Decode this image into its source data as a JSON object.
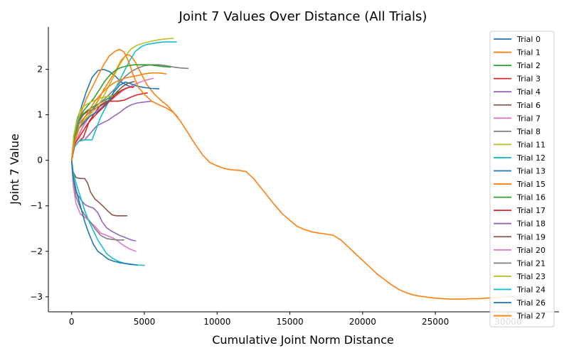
{
  "chart_data": {
    "type": "line",
    "title": "Joint 7 Values Over Distance (All Trials)",
    "xlabel": "Cumulative Joint Norm Distance",
    "ylabel": "Joint 7 Value",
    "xlim": [
      -1600,
      33500
    ],
    "ylim": [
      -3.33,
      2.93
    ],
    "xticks": [
      0,
      5000,
      10000,
      15000,
      20000,
      25000,
      30000
    ],
    "xtick_labels": [
      "0",
      "5000",
      "10000",
      "15000",
      "20000",
      "25000",
      "30000"
    ],
    "yticks": [
      -3,
      -2,
      -1,
      0,
      1,
      2
    ],
    "ytick_labels": [
      "−3",
      "−2",
      "−1",
      "0",
      "1",
      "2"
    ],
    "grid": false,
    "legend_position": "top-right",
    "series": [
      {
        "name": "Trial 0",
        "color": "#1f77b4",
        "x": [
          0,
          150,
          400,
          700,
          1000,
          1400,
          1800,
          2200,
          2600,
          3000,
          3400,
          3800,
          4200
        ],
        "y": [
          0,
          0.55,
          0.9,
          1.2,
          1.5,
          1.82,
          1.97,
          2.0,
          1.95,
          1.85,
          1.72,
          1.65,
          1.6
        ]
      },
      {
        "name": "Trial 1",
        "color": "#ff7f0e",
        "x": [
          0,
          150,
          400,
          700,
          1000,
          1400,
          1800,
          2200,
          2600,
          3000,
          3400,
          3700,
          3900,
          4100,
          4400,
          4700,
          5200,
          5700,
          6200,
          6600,
          7000,
          7300
        ],
        "y": [
          0,
          0.3,
          0.5,
          0.7,
          0.9,
          1.1,
          1.3,
          1.55,
          1.75,
          1.95,
          2.2,
          2.3,
          2.32,
          2.28,
          2.15,
          1.95,
          1.65,
          1.45,
          1.3,
          1.2,
          1.05,
          0.95
        ]
      },
      {
        "name": "Trial 2",
        "color": "#2ca02c",
        "x": [
          0,
          200,
          500,
          800,
          1100,
          1500,
          1900,
          2300,
          2700,
          3100,
          3500,
          3900
        ],
        "y": [
          0,
          0.5,
          0.85,
          1.02,
          1.1,
          1.18,
          1.25,
          1.32,
          1.4,
          1.48,
          1.55,
          1.6
        ]
      },
      {
        "name": "Trial 3",
        "color": "#d62728",
        "x": [
          0,
          200,
          500,
          800,
          1200,
          1600,
          2000,
          2400,
          2800,
          3200,
          3600,
          4000,
          4400,
          4800,
          5200
        ],
        "y": [
          0,
          0.3,
          0.42,
          0.5,
          0.85,
          1.05,
          1.22,
          1.3,
          1.3,
          1.3,
          1.32,
          1.38,
          1.43,
          1.46,
          1.48
        ]
      },
      {
        "name": "Trial 4",
        "color": "#9467bd",
        "x": [
          0,
          200,
          500,
          900,
          1300,
          1700,
          2100,
          2500,
          2900,
          3300,
          3700,
          4100,
          4500,
          5000,
          5500
        ],
        "y": [
          0,
          0.3,
          0.42,
          0.45,
          0.6,
          0.75,
          0.82,
          0.88,
          0.97,
          1.05,
          1.15,
          1.22,
          1.26,
          1.28,
          1.3
        ]
      },
      {
        "name": "Trial 6",
        "color": "#8c564b",
        "x": [
          0,
          200,
          500,
          800,
          1100,
          1500,
          1900,
          2300,
          2700,
          3100,
          3500,
          3900,
          4300
        ],
        "y": [
          0,
          0.5,
          0.85,
          1.0,
          1.08,
          1.12,
          1.18,
          1.25,
          1.35,
          1.5,
          1.62,
          1.7,
          1.73
        ]
      },
      {
        "name": "Trial 7",
        "color": "#e377c2",
        "x": [
          0,
          200,
          500,
          800,
          1200,
          1600,
          2000,
          2400,
          2800,
          3200,
          3600,
          4000,
          4400,
          4800,
          5200,
          5600
        ],
        "y": [
          0,
          0.35,
          0.55,
          0.75,
          0.95,
          1.05,
          1.15,
          1.25,
          1.35,
          1.45,
          1.55,
          1.62,
          1.68,
          1.73,
          1.77,
          1.8
        ]
      },
      {
        "name": "Trial 8",
        "color": "#7f7f7f",
        "x": [
          0,
          200,
          500,
          900,
          1300,
          1700,
          2100,
          2500,
          2900,
          3300,
          3700,
          4100,
          4500,
          5000,
          5500,
          6000,
          6500,
          7000,
          7500,
          8000
        ],
        "y": [
          0,
          0.45,
          0.8,
          0.95,
          1.08,
          1.2,
          1.3,
          1.42,
          1.55,
          1.7,
          1.85,
          1.95,
          2.02,
          2.08,
          2.1,
          2.1,
          2.08,
          2.05,
          2.03,
          2.02
        ]
      },
      {
        "name": "Trial 11",
        "color": "#bcbd22",
        "x": [
          0,
          200,
          500,
          900,
          1300,
          1700,
          2100,
          2500,
          2900,
          3300,
          3700,
          4100,
          4500,
          5000,
          5500,
          6000,
          6500,
          7000
        ],
        "y": [
          0,
          0.4,
          0.7,
          0.9,
          1.02,
          1.15,
          1.35,
          1.6,
          1.85,
          2.1,
          2.3,
          2.45,
          2.53,
          2.58,
          2.62,
          2.65,
          2.67,
          2.68
        ]
      },
      {
        "name": "Trial 12",
        "color": "#17becf",
        "x": [
          0,
          200,
          500,
          800,
          1100,
          1400,
          1700,
          2000,
          2400,
          2800,
          3200,
          3600,
          4000,
          4400,
          4800,
          5200,
          5800,
          6300,
          7200
        ],
        "y": [
          0,
          0.3,
          0.42,
          0.45,
          0.45,
          0.45,
          0.7,
          0.95,
          1.2,
          1.45,
          1.7,
          1.95,
          2.2,
          2.4,
          2.5,
          2.55,
          2.58,
          2.6,
          2.6
        ]
      },
      {
        "name": "Trial 13",
        "color": "#1f77b4",
        "x": [
          0,
          200,
          500,
          900,
          1300,
          1700,
          2100,
          2500,
          2900,
          3300,
          3700,
          4100,
          4500,
          5000,
          5500,
          6000
        ],
        "y": [
          0,
          0.4,
          0.7,
          0.85,
          0.98,
          1.05,
          1.15,
          1.3,
          1.5,
          1.65,
          1.72,
          1.68,
          1.63,
          1.6,
          1.58,
          1.57
        ]
      },
      {
        "name": "Trial 15",
        "color": "#ff7f0e",
        "x": [
          0,
          300,
          600,
          1000,
          1400,
          1800,
          2200,
          2600,
          3000,
          3300,
          3600,
          3800,
          4000,
          4200,
          4600,
          5000,
          5500,
          6000,
          6500,
          7000,
          7500,
          8000,
          8500,
          9000,
          9500,
          10000,
          10500,
          11000,
          11500,
          12000,
          12500,
          13000,
          13500,
          14000,
          14500,
          15000,
          15500,
          16000,
          16500,
          17000,
          17500,
          18000,
          18500,
          19000,
          19500,
          20000,
          20500,
          21000,
          21500,
          22000,
          22500,
          23000,
          23500,
          24000,
          24500,
          25000,
          25500,
          26000,
          26500,
          27000,
          27500,
          28000,
          28500,
          29000,
          29500,
          30000,
          30500
        ],
        "y": [
          0,
          0.6,
          1.0,
          1.35,
          1.6,
          1.85,
          2.1,
          2.3,
          2.4,
          2.44,
          2.38,
          2.25,
          2.1,
          1.9,
          1.6,
          1.45,
          1.3,
          1.22,
          1.15,
          1.05,
          0.85,
          0.6,
          0.35,
          0.12,
          -0.05,
          -0.12,
          -0.18,
          -0.21,
          -0.22,
          -0.25,
          -0.4,
          -0.6,
          -0.8,
          -1.0,
          -1.18,
          -1.32,
          -1.45,
          -1.52,
          -1.57,
          -1.6,
          -1.62,
          -1.65,
          -1.75,
          -1.9,
          -2.05,
          -2.2,
          -2.35,
          -2.5,
          -2.62,
          -2.74,
          -2.84,
          -2.91,
          -2.96,
          -2.99,
          -3.01,
          -3.03,
          -3.04,
          -3.05,
          -3.05,
          -3.05,
          -3.04,
          -3.04,
          -3.03,
          -3.02,
          -3.01,
          -3.0,
          -2.99
        ]
      },
      {
        "name": "Trial 16",
        "color": "#2ca02c",
        "x": [
          0,
          200,
          500,
          800,
          1100,
          1500,
          1900,
          2300,
          2700,
          3100,
          3500,
          3900,
          4300,
          4800,
          5300,
          5800,
          6300,
          6800
        ],
        "y": [
          0,
          0.5,
          0.9,
          1.08,
          1.2,
          1.35,
          1.55,
          1.75,
          1.9,
          2.0,
          2.05,
          2.08,
          2.1,
          2.1,
          2.1,
          2.08,
          2.06,
          2.05
        ]
      },
      {
        "name": "Trial 17",
        "color": "#d62728",
        "x": [
          0,
          200,
          500,
          800,
          1100,
          1500,
          1900,
          2300,
          2700,
          3100,
          3500,
          3900,
          4300
        ],
        "y": [
          0,
          0.35,
          0.5,
          0.65,
          0.8,
          0.95,
          1.08,
          1.2,
          1.33,
          1.45,
          1.55,
          1.6,
          1.62
        ]
      },
      {
        "name": "Trial 18",
        "color": "#9467bd",
        "x": [
          0,
          100,
          300,
          600,
          900,
          1200,
          1500,
          1800,
          2100,
          2400,
          2700,
          3000,
          3300,
          3700,
          4100,
          4400
        ],
        "y": [
          0,
          -0.4,
          -0.7,
          -0.85,
          -0.97,
          -1.02,
          -1.05,
          -1.15,
          -1.35,
          -1.48,
          -1.55,
          -1.6,
          -1.65,
          -1.7,
          -1.75,
          -1.77
        ]
      },
      {
        "name": "Trial 19",
        "color": "#8c564b",
        "x": [
          0,
          100,
          300,
          600,
          900,
          1100,
          1300,
          1600,
          1900,
          2200,
          2500,
          2800,
          3100,
          3400,
          3800
        ],
        "y": [
          0,
          -0.25,
          -0.38,
          -0.4,
          -0.4,
          -0.5,
          -0.7,
          -0.85,
          -0.93,
          -1.02,
          -1.12,
          -1.2,
          -1.22,
          -1.22,
          -1.22
        ]
      },
      {
        "name": "Trial 20",
        "color": "#e377c2",
        "x": [
          0,
          100,
          300,
          600,
          900,
          1200,
          1600,
          2000,
          2400,
          2800,
          3200,
          3600,
          4000,
          4400
        ],
        "y": [
          0,
          -0.55,
          -0.95,
          -1.18,
          -1.25,
          -1.33,
          -1.45,
          -1.6,
          -1.65,
          -1.7,
          -1.78,
          -1.88,
          -1.95,
          -2.0
        ]
      },
      {
        "name": "Trial 21",
        "color": "#7f7f7f",
        "x": [
          0,
          100,
          300,
          600,
          900,
          1200,
          1600,
          2000,
          2400,
          2800,
          3200,
          3600
        ],
        "y": [
          0,
          -0.4,
          -0.8,
          -1.05,
          -1.2,
          -1.32,
          -1.5,
          -1.65,
          -1.72,
          -1.74,
          -1.75,
          -1.75
        ]
      },
      {
        "name": "Trial 23",
        "color": "#bcbd22",
        "x": [
          0,
          150,
          400,
          700,
          1000,
          1300,
          1600,
          2000,
          2400,
          2800
        ],
        "y": [
          0,
          0.55,
          0.95,
          1.15,
          1.22,
          1.28,
          1.32,
          1.37,
          1.4,
          1.42
        ]
      },
      {
        "name": "Trial 24",
        "color": "#17becf",
        "x": [
          0,
          100,
          300,
          600,
          900,
          1200,
          1500,
          1800,
          2100,
          2400,
          2800,
          3200,
          3600,
          4000,
          4500,
          5000
        ],
        "y": [
          0,
          -0.25,
          -0.5,
          -0.8,
          -1.1,
          -1.35,
          -1.55,
          -1.75,
          -1.9,
          -2.05,
          -2.15,
          -2.22,
          -2.26,
          -2.28,
          -2.3,
          -2.31
        ]
      },
      {
        "name": "Trial 26",
        "color": "#1f77b4",
        "x": [
          0,
          100,
          300,
          600,
          900,
          1200,
          1500,
          1800,
          2100,
          2500,
          2900,
          3300,
          3700,
          4100,
          4500
        ],
        "y": [
          0,
          -0.35,
          -0.65,
          -1.0,
          -1.35,
          -1.62,
          -1.85,
          -2.0,
          -2.07,
          -2.17,
          -2.22,
          -2.25,
          -2.27,
          -2.29,
          -2.3
        ]
      },
      {
        "name": "Trial 27",
        "color": "#ff7f0e",
        "x": [
          0,
          200,
          500,
          800,
          1200,
          1600,
          2000,
          2400,
          2800,
          3200,
          3600,
          4000,
          4500,
          5000,
          5500,
          6000,
          6500
        ],
        "y": [
          0,
          0.4,
          0.7,
          0.9,
          1.1,
          1.3,
          1.45,
          1.58,
          1.68,
          1.75,
          1.8,
          1.83,
          1.86,
          1.9,
          1.92,
          1.92,
          1.9
        ]
      }
    ]
  }
}
